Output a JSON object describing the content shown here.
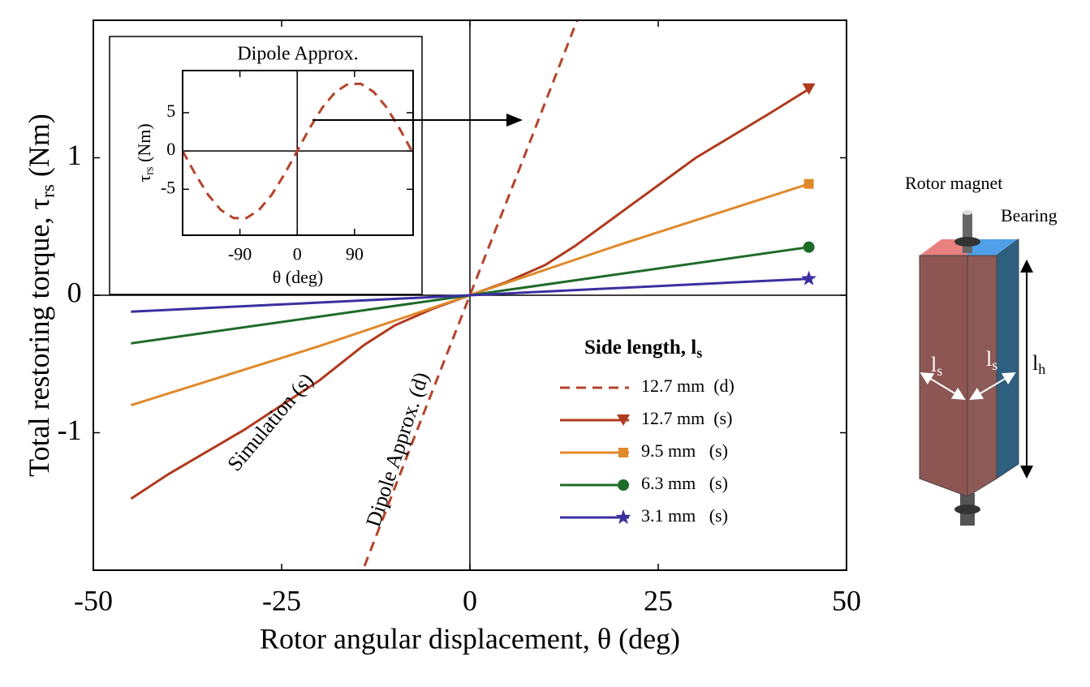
{
  "chart_data": [
    {
      "type": "line",
      "xlabel": "Rotor angular displacement, θ (deg)",
      "ylabel": {
        "text": "Total restoring torque, τ",
        "sub": "rs",
        "unit": " (Nm)"
      },
      "xlim": [
        -50,
        50
      ],
      "xticks": [
        -50,
        -25,
        0,
        25,
        50
      ],
      "ylim": [
        -2,
        2
      ],
      "yticks": [
        -1,
        0,
        1
      ],
      "annotations": [
        "Simulation (s)",
        "Dipole Approx. (d)"
      ],
      "legend": {
        "title": {
          "text": "Side length, l",
          "sub": "s"
        },
        "corner": "lower right"
      },
      "series": [
        {
          "name": "12.7 mm  (d)",
          "color": "#b5432a",
          "linestyle": "dashed",
          "marker": "none",
          "x": [
            -14,
            -7,
            0,
            7,
            14.3
          ],
          "values": [
            -1.97,
            -0.98,
            0,
            0.98,
            2.01
          ]
        },
        {
          "name": "12.7 mm  (s)",
          "color": "#b03a1e",
          "linestyle": "solid",
          "marker": "triangle",
          "x": [
            -45,
            -40,
            -30,
            -20,
            -14,
            -10,
            -5,
            0,
            5,
            10,
            14,
            20,
            30,
            40,
            45
          ],
          "values": [
            -1.48,
            -1.3,
            -0.98,
            -0.62,
            -0.36,
            -0.22,
            -0.1,
            0,
            0.1,
            0.22,
            0.36,
            0.6,
            1.0,
            1.33,
            1.5
          ]
        },
        {
          "name": "9.5 mm   (s)",
          "color": "#e0892b",
          "linestyle": "solid",
          "marker": "square",
          "x": [
            -45,
            -20,
            0,
            20,
            45
          ],
          "values": [
            -0.8,
            -0.37,
            0,
            0.37,
            0.81
          ]
        },
        {
          "name": "6.3 mm   (s)",
          "color": "#1f6b2a",
          "linestyle": "solid",
          "marker": "circle",
          "x": [
            -45,
            0,
            45
          ],
          "values": [
            -0.35,
            0,
            0.35
          ]
        },
        {
          "name": "3.1 mm   (s)",
          "color": "#3b2fa0",
          "linestyle": "solid",
          "marker": "star",
          "x": [
            -45,
            0,
            45
          ],
          "values": [
            -0.12,
            0,
            0.12
          ]
        }
      ]
    },
    {
      "type": "line",
      "title": "Dipole Approx.",
      "xlabel": "θ (deg)",
      "ylabel": {
        "text": "τ",
        "sub": "rs",
        "unit": " (Nm)"
      },
      "xlim": [
        -180,
        182
      ],
      "xticks": [
        -90,
        0,
        90
      ],
      "ylim": [
        -11,
        10.5
      ],
      "yticks": [
        -5,
        0,
        5
      ],
      "series": [
        {
          "color": "#b5432a",
          "linestyle": "dashed",
          "marker": "none",
          "x": [
            -180,
            -160,
            -140,
            -120,
            -100,
            -80,
            -60,
            -40,
            -20,
            0,
            20,
            40,
            60,
            80,
            100,
            120,
            140,
            160,
            180
          ],
          "values": [
            0,
            -3.04,
            -5.72,
            -7.71,
            -8.76,
            -8.76,
            -7.71,
            -5.72,
            -3.04,
            0,
            3.04,
            5.72,
            7.71,
            8.76,
            8.76,
            7.71,
            5.72,
            3.04,
            0
          ]
        }
      ]
    }
  ],
  "diagram": {
    "labels": [
      "Rotor magnet",
      "Bearing"
    ],
    "dims": [
      {
        "text": "l",
        "sub": "s"
      },
      {
        "text": "l",
        "sub": "s"
      },
      {
        "text": "l",
        "sub": "h"
      }
    ]
  }
}
